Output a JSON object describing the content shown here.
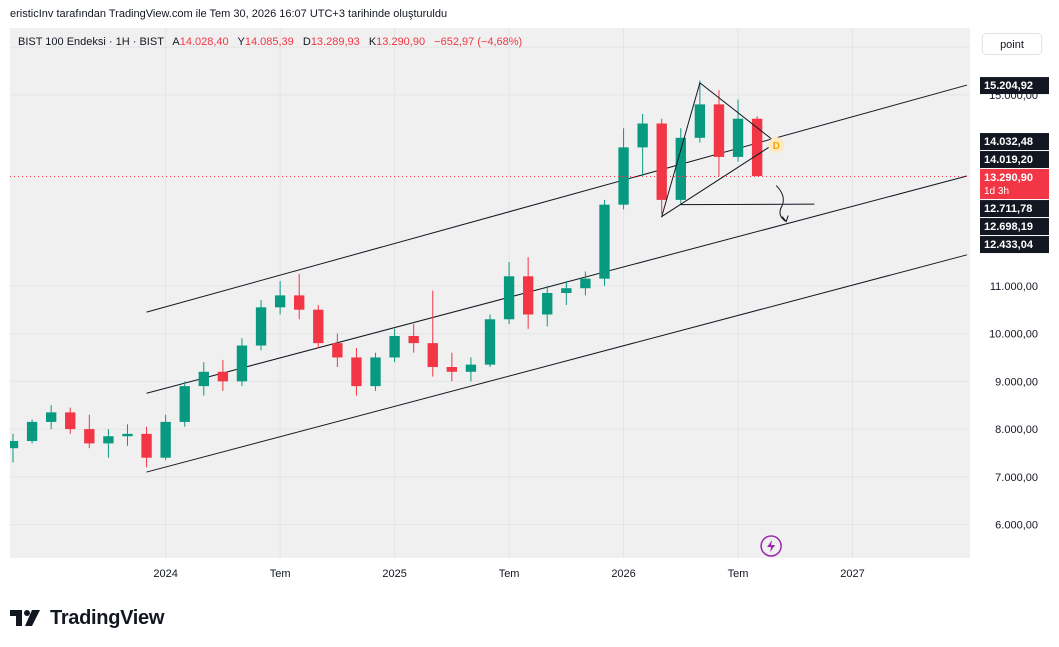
{
  "attribution": "eristicInv tarafından TradingView.com ile Tem 30, 2026 16:07 UTC+3 tarihinde oluşturuldu",
  "legend": {
    "symbol": "BIST 100 Endeksi · 1H · BIST",
    "open_label": "A",
    "open": "14.028,40",
    "high_label": "Y",
    "high": "14.085,39",
    "low_label": "D",
    "low": "13.289,93",
    "close_label": "K",
    "close": "13.290,90",
    "change": "−652,97 (−4,68%)"
  },
  "unit_button": "point",
  "brand": "TradingView",
  "colors": {
    "up": "#089981",
    "down": "#f23645",
    "background": "#f0f0f0",
    "label_dark": "#131722",
    "price_dot": "#f23645",
    "pattern_point": "#f7a600",
    "purple_icon": "#9c27b0"
  },
  "icons": [
    "tradingview-logo-icon",
    "lightning-icon"
  ],
  "chart_data": {
    "type": "candlestick",
    "title": "",
    "x_tick_labels": [
      "2024",
      "Tem",
      "2025",
      "Tem",
      "2026",
      "Tem",
      "2027"
    ],
    "x_ticks": [
      "2024-01",
      "2024-07",
      "2025-01",
      "2025-07",
      "2026-01",
      "2026-07",
      "2027-01"
    ],
    "y_tick_labels": [
      "16.000,00",
      "15.000,00",
      "11.000,00",
      "10.000,00",
      "9.000,00",
      "8.000,00",
      "7.000,00",
      "6.000,00"
    ],
    "y_ticks": [
      16000,
      15000,
      11000,
      10000,
      9000,
      8000,
      7000,
      6000
    ],
    "ylim": [
      5300,
      16400
    ],
    "xlim": [
      "2023-05",
      "2027-07"
    ],
    "price_labels": [
      {
        "value": 15204.92,
        "text": "15.204,92",
        "style": "dark"
      },
      {
        "value": 14032.48,
        "text": "14.032,48",
        "style": "dark"
      },
      {
        "value": 14019.2,
        "text": "14.019,20",
        "style": "dark"
      },
      {
        "value": 13290.9,
        "text": "13.290,90",
        "style": "current",
        "sub": "1d 3h"
      },
      {
        "value": 12711.78,
        "text": "12.711,78",
        "style": "dark"
      },
      {
        "value": 12698.19,
        "text": "12.698,19",
        "style": "dark"
      },
      {
        "value": 12433.04,
        "text": "12.433,04",
        "style": "dark"
      }
    ],
    "current_price": 13290.9,
    "pattern_point_label": "D",
    "channels": [
      {
        "name": "upper",
        "from": [
          "2023-12",
          10450
        ],
        "to": [
          "2027-07",
          15204.92
        ]
      },
      {
        "name": "middle",
        "from": [
          "2023-12",
          8750
        ],
        "to": [
          "2027-07",
          13300
        ]
      },
      {
        "name": "lower",
        "from": [
          "2023-12",
          7100
        ],
        "to": [
          "2027-07",
          11650
        ]
      }
    ],
    "triangle": {
      "points": [
        [
          "2026-03",
          12450
        ],
        [
          "2026-05",
          15250
        ],
        [
          "2026-09",
          14000
        ]
      ]
    },
    "horizontal_segment": {
      "from": [
        "2026-04",
        12700
      ],
      "to": [
        "2026-11",
        12711.78
      ]
    },
    "candles": [
      [
        "2023-05",
        7600,
        7900,
        7300,
        7750
      ],
      [
        "2023-06",
        7750,
        8200,
        7700,
        8150
      ],
      [
        "2023-07",
        8150,
        8500,
        8000,
        8350
      ],
      [
        "2023-08",
        8350,
        8450,
        7900,
        8000
      ],
      [
        "2023-09",
        8000,
        8300,
        7600,
        7700
      ],
      [
        "2023-10",
        7700,
        8000,
        7400,
        7850
      ],
      [
        "2023-11",
        7850,
        8100,
        7650,
        7900
      ],
      [
        "2023-12",
        7900,
        8050,
        7200,
        7400
      ],
      [
        "2024-01",
        7400,
        8300,
        7350,
        8150
      ],
      [
        "2024-02",
        8150,
        9000,
        8050,
        8900
      ],
      [
        "2024-03",
        8900,
        9400,
        8700,
        9200
      ],
      [
        "2024-04",
        9200,
        9450,
        8800,
        9000
      ],
      [
        "2024-05",
        9000,
        9900,
        8900,
        9750
      ],
      [
        "2024-06",
        9750,
        10700,
        9650,
        10550
      ],
      [
        "2024-07",
        10550,
        11100,
        10400,
        10800
      ],
      [
        "2024-08",
        10800,
        11250,
        10300,
        10500
      ],
      [
        "2024-09",
        10500,
        10600,
        9700,
        9800
      ],
      [
        "2024-10",
        9800,
        10000,
        9300,
        9500
      ],
      [
        "2024-11",
        9500,
        9700,
        8700,
        8900
      ],
      [
        "2024-12",
        8900,
        9600,
        8800,
        9500
      ],
      [
        "2025-01",
        9500,
        10100,
        9400,
        9950
      ],
      [
        "2025-02",
        9950,
        10200,
        9600,
        9800
      ],
      [
        "2025-03",
        9800,
        10900,
        9100,
        9300
      ],
      [
        "2025-04",
        9300,
        9600,
        9000,
        9200
      ],
      [
        "2025-05",
        9200,
        9500,
        9000,
        9350
      ],
      [
        "2025-06",
        9350,
        10400,
        9300,
        10300
      ],
      [
        "2025-07",
        10300,
        11500,
        10200,
        11200
      ],
      [
        "2025-08",
        11200,
        11600,
        10100,
        10400
      ],
      [
        "2025-09",
        10400,
        11000,
        10150,
        10850
      ],
      [
        "2025-10",
        10850,
        11100,
        10600,
        10950
      ],
      [
        "2025-11",
        10950,
        11300,
        10800,
        11150
      ],
      [
        "2025-12",
        11150,
        12800,
        11000,
        12700
      ],
      [
        "2026-01",
        12700,
        14300,
        12600,
        13900
      ],
      [
        "2026-02",
        13900,
        14600,
        13300,
        14400
      ],
      [
        "2026-03",
        14400,
        14500,
        12500,
        12800
      ],
      [
        "2026-04",
        12800,
        14300,
        12700,
        14100
      ],
      [
        "2026-05",
        14100,
        15300,
        14000,
        14800
      ],
      [
        "2026-06",
        14800,
        15100,
        13300,
        13700
      ],
      [
        "2026-07",
        13700,
        14900,
        13600,
        14500
      ],
      [
        "2026-08",
        14500,
        14550,
        13290,
        13300
      ]
    ]
  }
}
